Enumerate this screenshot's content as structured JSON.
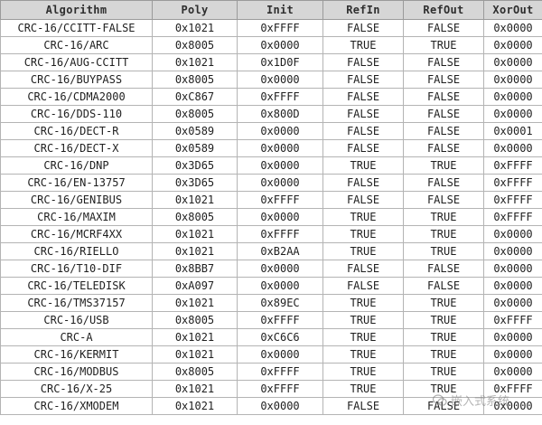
{
  "headers": [
    "Algorithm",
    "Poly",
    "Init",
    "RefIn",
    "RefOut",
    "XorOut"
  ],
  "rows": [
    [
      "CRC-16/CCITT-FALSE",
      "0x1021",
      "0xFFFF",
      "FALSE",
      "FALSE",
      "0x0000"
    ],
    [
      "CRC-16/ARC",
      "0x8005",
      "0x0000",
      "TRUE",
      "TRUE",
      "0x0000"
    ],
    [
      "CRC-16/AUG-CCITT",
      "0x1021",
      "0x1D0F",
      "FALSE",
      "FALSE",
      "0x0000"
    ],
    [
      "CRC-16/BUYPASS",
      "0x8005",
      "0x0000",
      "FALSE",
      "FALSE",
      "0x0000"
    ],
    [
      "CRC-16/CDMA2000",
      "0xC867",
      "0xFFFF",
      "FALSE",
      "FALSE",
      "0x0000"
    ],
    [
      "CRC-16/DDS-110",
      "0x8005",
      "0x800D",
      "FALSE",
      "FALSE",
      "0x0000"
    ],
    [
      "CRC-16/DECT-R",
      "0x0589",
      "0x0000",
      "FALSE",
      "FALSE",
      "0x0001"
    ],
    [
      "CRC-16/DECT-X",
      "0x0589",
      "0x0000",
      "FALSE",
      "FALSE",
      "0x0000"
    ],
    [
      "CRC-16/DNP",
      "0x3D65",
      "0x0000",
      "TRUE",
      "TRUE",
      "0xFFFF"
    ],
    [
      "CRC-16/EN-13757",
      "0x3D65",
      "0x0000",
      "FALSE",
      "FALSE",
      "0xFFFF"
    ],
    [
      "CRC-16/GENIBUS",
      "0x1021",
      "0xFFFF",
      "FALSE",
      "FALSE",
      "0xFFFF"
    ],
    [
      "CRC-16/MAXIM",
      "0x8005",
      "0x0000",
      "TRUE",
      "TRUE",
      "0xFFFF"
    ],
    [
      "CRC-16/MCRF4XX",
      "0x1021",
      "0xFFFF",
      "TRUE",
      "TRUE",
      "0x0000"
    ],
    [
      "CRC-16/RIELLO",
      "0x1021",
      "0xB2AA",
      "TRUE",
      "TRUE",
      "0x0000"
    ],
    [
      "CRC-16/T10-DIF",
      "0x8BB7",
      "0x0000",
      "FALSE",
      "FALSE",
      "0x0000"
    ],
    [
      "CRC-16/TELEDISK",
      "0xA097",
      "0x0000",
      "FALSE",
      "FALSE",
      "0x0000"
    ],
    [
      "CRC-16/TMS37157",
      "0x1021",
      "0x89EC",
      "TRUE",
      "TRUE",
      "0x0000"
    ],
    [
      "CRC-16/USB",
      "0x8005",
      "0xFFFF",
      "TRUE",
      "TRUE",
      "0xFFFF"
    ],
    [
      "CRC-A",
      "0x1021",
      "0xC6C6",
      "TRUE",
      "TRUE",
      "0x0000"
    ],
    [
      "CRC-16/KERMIT",
      "0x1021",
      "0x0000",
      "TRUE",
      "TRUE",
      "0x0000"
    ],
    [
      "CRC-16/MODBUS",
      "0x8005",
      "0xFFFF",
      "TRUE",
      "TRUE",
      "0x0000"
    ],
    [
      "CRC-16/X-25",
      "0x1021",
      "0xFFFF",
      "TRUE",
      "TRUE",
      "0xFFFF"
    ],
    [
      "CRC-16/XMODEM",
      "0x1021",
      "0x0000",
      "FALSE",
      "FALSE",
      "0x0000"
    ]
  ],
  "watermark": {
    "text": "嵌入式系统",
    "icon": "wechat-icon"
  },
  "colors": {
    "header_bg": "#d6d6d6",
    "border": "#b4b4b4",
    "text": "#1f1f1f"
  }
}
